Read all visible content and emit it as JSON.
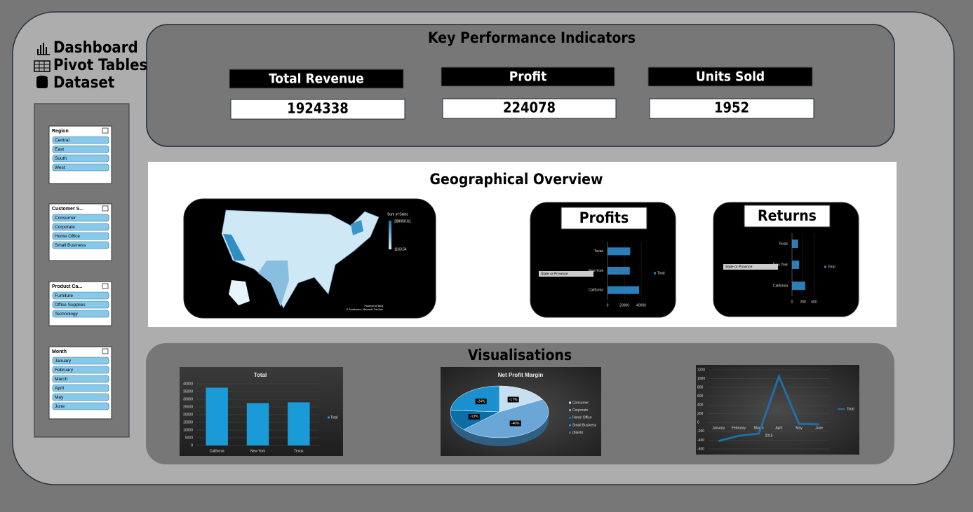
{
  "nav": [
    "Dashboard",
    "Pivot Tables",
    "Dataset"
  ],
  "slicers": [
    {
      "title": "Region",
      "items": [
        "Central",
        "East",
        "South",
        "West"
      ]
    },
    {
      "title": "Customer S...",
      "items": [
        "Consumer",
        "Corporate",
        "Home Office",
        "Small Business"
      ]
    },
    {
      "title": "Product Ca...",
      "items": [
        "Furniture",
        "Office Supplies",
        "Technology"
      ]
    },
    {
      "title": "Month",
      "items": [
        "January",
        "February",
        "March",
        "April",
        "May",
        "June"
      ]
    }
  ],
  "kpi": {
    "title": "Key Performance Indicators",
    "cards": [
      {
        "label": "Total Revenue",
        "value": 1924338
      },
      {
        "label": "Profit",
        "value": 224078
      },
      {
        "label": "Units Sold",
        "value": 1952
      }
    ]
  },
  "geo": {
    "title": "Geographical Overview",
    "map": {
      "legend_title": "Sum of Sales",
      "max_label": "288050.61",
      "min_label": "1163.54",
      "credit": [
        "Powered by Bing",
        "© GeoNames, Microsoft, TomTom"
      ]
    },
    "profits": {
      "type": "bar",
      "orientation": "horizontal",
      "title": "Profits",
      "filter": "State or Province",
      "categories": [
        "Texas",
        "New York",
        "California"
      ],
      "values": [
        27000,
        26500,
        37500
      ],
      "color": "#2b7fb8",
      "xlim": [
        0,
        50000
      ],
      "xticks": [
        0,
        20000,
        40000
      ],
      "series_name": "Total"
    },
    "returns": {
      "type": "bar",
      "orientation": "horizontal",
      "title": "Returns",
      "filter": "State or Province",
      "categories": [
        "Texas",
        "New York",
        "California"
      ],
      "values": [
        110,
        130,
        240
      ],
      "color": "#2b7fb8",
      "xlim": [
        0,
        600
      ],
      "xticks": [
        0,
        200,
        400
      ],
      "series_name": "Total"
    }
  },
  "visualisations": {
    "title": "Visualisations",
    "total": {
      "type": "bar",
      "title": "Total",
      "categories": [
        "California",
        "New York",
        "Texas"
      ],
      "values": [
        37500,
        27500,
        28000
      ],
      "color": "#1a9ad6",
      "ylim": [
        0,
        40000
      ],
      "yticks": [
        0,
        5000,
        10000,
        15000,
        20000,
        25000,
        30000,
        35000,
        40000
      ],
      "series_name": "Total"
    },
    "npm": {
      "type": "pie",
      "title": "Net Profit Margin",
      "categories": [
        "Consumer",
        "Corporate",
        "Home Office",
        "Small Business",
        "(blank)"
      ],
      "values": [
        -17,
        -46,
        -13,
        -24,
        null
      ],
      "value_labels": [
        "-17%",
        "-46%",
        "-13%",
        "-24%",
        null
      ],
      "colors": [
        "#c6e0f2",
        "#6aa6d6",
        "#0b6fa6",
        "#1a90d0",
        "#2b6f9e"
      ]
    },
    "trend": {
      "type": "line",
      "categories": [
        "January",
        "February",
        "March",
        "April",
        "May",
        "June"
      ],
      "values": [
        -420,
        -300,
        -250,
        1050,
        -30,
        -40
      ],
      "color": "#1f6fa5",
      "ylim": [
        -600,
        1200
      ],
      "yticks": [
        -600,
        -400,
        -200,
        0,
        200,
        400,
        600,
        800,
        1000,
        1200
      ],
      "x_label": "2015",
      "series_name": "Total"
    }
  }
}
